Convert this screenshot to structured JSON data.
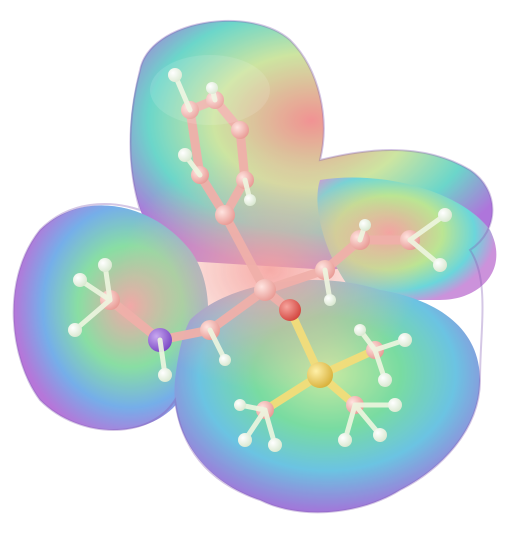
{
  "image": {
    "subject": "molecule-electrostatic-potential-surface",
    "background_color": "#ffffff",
    "surface_palette": [
      "#b06bd6",
      "#6a8fe0",
      "#5fd3d8",
      "#62d98a",
      "#b8e07a",
      "#f2a7a0",
      "#ee8a8a",
      "#c889d8"
    ],
    "atom_colors": {
      "carbon": "#f3b3ae",
      "hydrogen": "#f7f2e8",
      "nitrogen": "#8a5bd0",
      "oxygen": "#e0524a",
      "silicon": "#e7c64a"
    }
  }
}
